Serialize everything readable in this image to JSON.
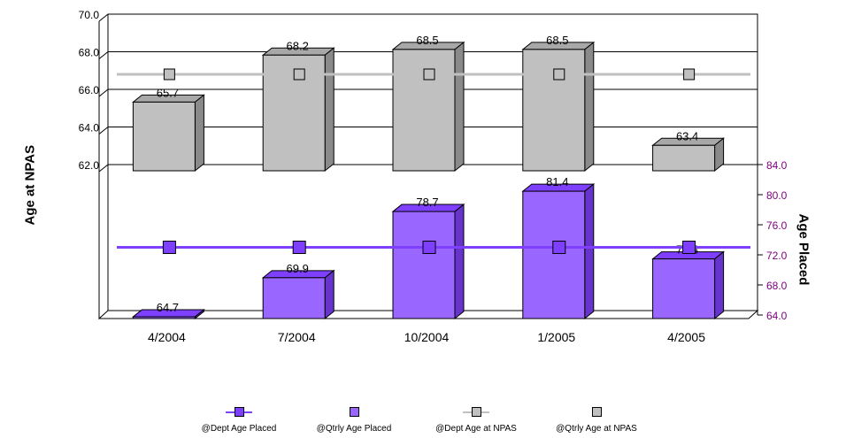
{
  "chart_data": [
    {
      "type": "bar",
      "panel": "top",
      "categories": [
        "4/2004",
        "7/2004",
        "10/2004",
        "1/2005",
        "4/2005"
      ],
      "ylabel": "Age at NPAS",
      "ylim": [
        62.0,
        70.0
      ],
      "yticks": [
        "62.0",
        "64.0",
        "66.0",
        "68.0",
        "70.0"
      ],
      "series": [
        {
          "name": "@Qtrly Age at NPAS",
          "type": "bar",
          "color": "#c0c0c0",
          "values": [
            65.7,
            68.2,
            68.5,
            68.5,
            63.4
          ],
          "labels": [
            "65.7",
            "68.2",
            "68.5",
            "68.5",
            "63.4"
          ]
        },
        {
          "name": "@Dept Age at NPAS",
          "type": "line",
          "color": "#c0c0c0",
          "values": [
            66.8,
            66.8,
            66.8,
            66.8,
            66.8
          ]
        }
      ],
      "grid": true
    },
    {
      "type": "bar",
      "panel": "bottom",
      "categories": [
        "4/2004",
        "7/2004",
        "10/2004",
        "1/2005",
        "4/2005"
      ],
      "ylabel": "Age Placed",
      "ylim": [
        64.0,
        84.0
      ],
      "yticks": [
        "64.0",
        "68.0",
        "72.0",
        "76.0",
        "80.0",
        "84.0"
      ],
      "series": [
        {
          "name": "@Qtrly Age Placed",
          "type": "bar",
          "color": "#9966ff",
          "values": [
            64.7,
            69.9,
            78.7,
            81.4,
            72.4
          ],
          "labels": [
            "64.7",
            "69.9",
            "78.7",
            "81.4",
            "72.4"
          ]
        },
        {
          "name": "@Dept Age Placed",
          "type": "line",
          "color": "#7f3fff",
          "values": [
            73.0,
            73.0,
            73.0,
            73.0,
            73.0
          ]
        }
      ],
      "grid": false
    }
  ],
  "axis_label_color_right": "#800080",
  "legend": {
    "items": [
      {
        "label": "@Dept Age Placed",
        "kind": "line-marker",
        "line_color": "#7f3fff",
        "fill": "#7f3fff"
      },
      {
        "label": "@Qtrly Age Placed",
        "kind": "box",
        "fill": "#9966ff"
      },
      {
        "label": "@Dept Age at NPAS",
        "kind": "line-marker",
        "line_color": "#c0c0c0",
        "fill": "#c0c0c0"
      },
      {
        "label": "@Qtrly Age at NPAS",
        "kind": "box",
        "fill": "#c0c0c0"
      }
    ]
  }
}
